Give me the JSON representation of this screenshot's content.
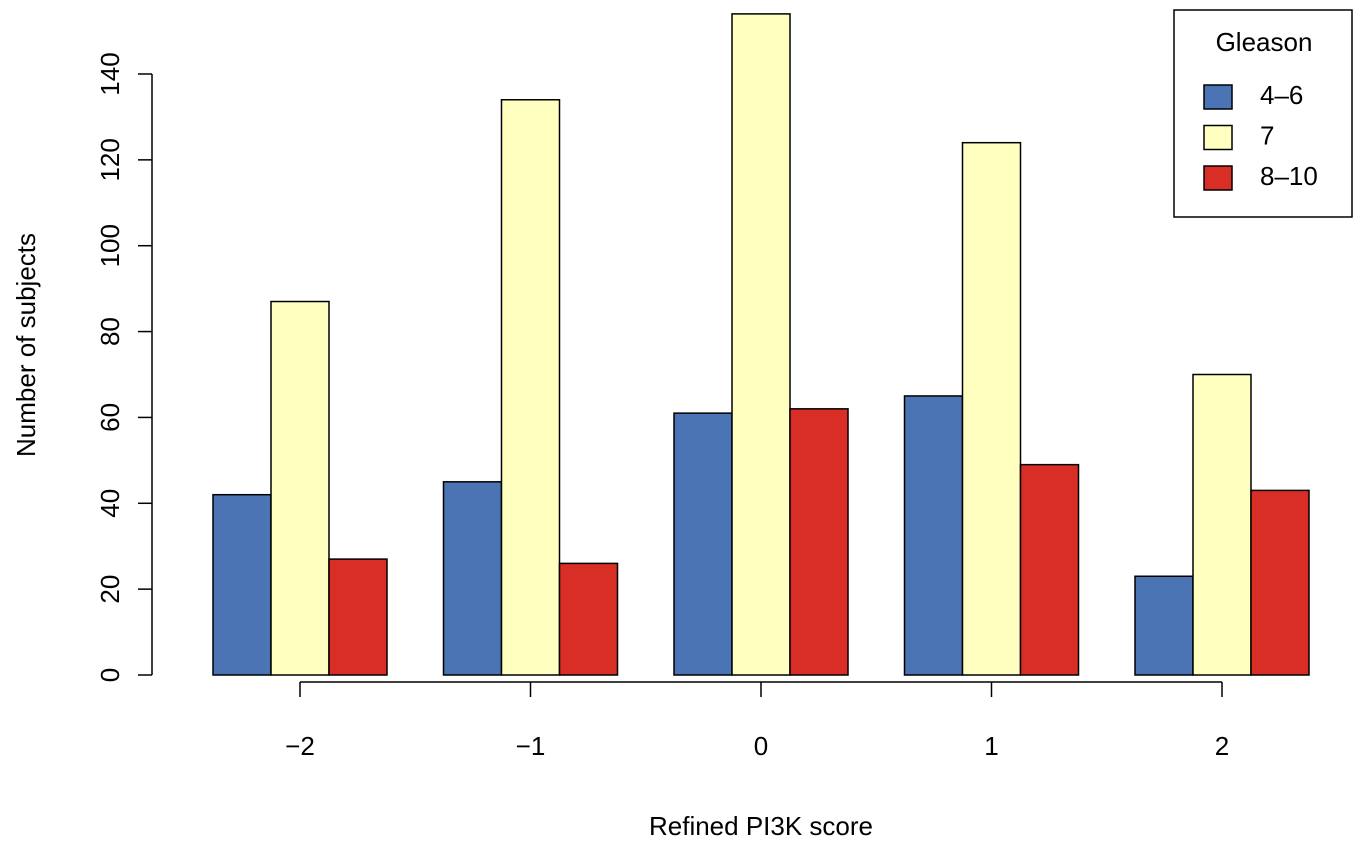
{
  "chart_data": {
    "type": "bar",
    "x_label": "Refined PI3K score",
    "y_label": "Number of subjects",
    "categories": [
      "−2",
      "−1",
      "0",
      "1",
      "2"
    ],
    "series": [
      {
        "name": "4–6",
        "color": "#4a74b4",
        "values": [
          42,
          45,
          61,
          65,
          23
        ]
      },
      {
        "name": "7",
        "color": "#ffffc0",
        "values": [
          87,
          134,
          154,
          124,
          70
        ]
      },
      {
        "name": "8–10",
        "color": "#d92e26",
        "values": [
          27,
          26,
          62,
          49,
          43
        ]
      }
    ],
    "legend_title": "Gleason",
    "legend": "top-right",
    "ylim": [
      0,
      155
    ],
    "yticks": [
      0,
      20,
      40,
      60,
      80,
      100,
      120,
      140
    ]
  }
}
